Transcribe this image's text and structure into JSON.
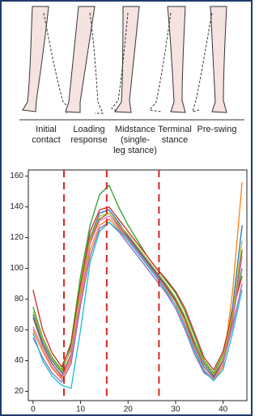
{
  "figure": {
    "phases": [
      [
        "Initial",
        "contact"
      ],
      [
        "Loading",
        "response"
      ],
      [
        "Midstance",
        "(single-",
        "leg stance)"
      ],
      [
        "Terminal",
        "stance"
      ],
      [
        "Pre-swing"
      ]
    ]
  },
  "chart_data": {
    "type": "line",
    "x": [
      0,
      2,
      4,
      6,
      8,
      10,
      12,
      14,
      16,
      18,
      20,
      22,
      24,
      26,
      28,
      30,
      32,
      34,
      36,
      38,
      40,
      42,
      44
    ],
    "series": [
      {
        "color": "#1f77b4",
        "values": [
          70,
          52,
          40,
          32,
          48,
          88,
          120,
          136,
          138,
          130,
          121,
          113,
          105,
          97,
          89,
          80,
          68,
          52,
          38,
          30,
          40,
          75,
          128
        ]
      },
      {
        "color": "#ff7f0e",
        "values": [
          60,
          46,
          35,
          28,
          40,
          80,
          112,
          128,
          132,
          126,
          118,
          110,
          102,
          95,
          87,
          78,
          65,
          48,
          34,
          27,
          36,
          85,
          156
        ]
      },
      {
        "color": "#2ca02c",
        "values": [
          75,
          55,
          42,
          34,
          52,
          95,
          128,
          148,
          154,
          140,
          128,
          118,
          108,
          100,
          92,
          84,
          72,
          56,
          40,
          32,
          44,
          68,
          100
        ]
      },
      {
        "color": "#d62728",
        "values": [
          86,
          60,
          45,
          36,
          50,
          90,
          124,
          138,
          140,
          132,
          124,
          116,
          108,
          100,
          93,
          85,
          74,
          58,
          42,
          34,
          46,
          72,
          95
        ]
      },
      {
        "color": "#9467bd",
        "values": [
          55,
          42,
          32,
          26,
          38,
          76,
          108,
          126,
          130,
          124,
          116,
          108,
          100,
          92,
          84,
          74,
          60,
          44,
          32,
          28,
          38,
          62,
          90
        ]
      },
      {
        "color": "#8c564b",
        "values": [
          68,
          50,
          38,
          30,
          44,
          84,
          118,
          132,
          136,
          128,
          120,
          112,
          104,
          96,
          88,
          79,
          67,
          50,
          36,
          29,
          40,
          66,
          112
        ]
      },
      {
        "color": "#e377c2",
        "values": [
          62,
          48,
          36,
          29,
          42,
          82,
          116,
          131,
          134,
          127,
          119,
          111,
          103,
          95,
          86,
          76,
          63,
          47,
          34,
          28,
          38,
          64,
          108
        ]
      },
      {
        "color": "#17becf",
        "values": [
          58,
          40,
          30,
          24,
          22,
          60,
          104,
          124,
          130,
          125,
          118,
          110,
          102,
          94,
          85,
          76,
          62,
          46,
          33,
          27,
          34,
          58,
          86
        ]
      },
      {
        "color": "#bcbd22",
        "values": [
          72,
          54,
          41,
          33,
          47,
          86,
          119,
          134,
          136,
          129,
          122,
          114,
          106,
          98,
          90,
          81,
          69,
          53,
          39,
          31,
          42,
          70,
          118
        ]
      }
    ],
    "xlim": [
      -1,
      45
    ],
    "ylim": [
      14,
      164
    ],
    "xticks": [
      0,
      10,
      20,
      30,
      40
    ],
    "yticks": [
      20,
      40,
      60,
      80,
      100,
      120,
      140,
      160
    ],
    "vlines": [
      6.5,
      15.5,
      26.5
    ],
    "vline_color": "#d62728"
  }
}
